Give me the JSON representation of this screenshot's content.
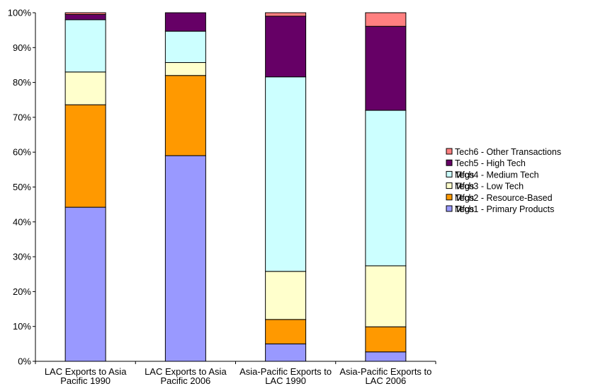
{
  "chart_data": {
    "type": "bar",
    "stacked": true,
    "percent": true,
    "categories": [
      [
        "LAC Exports to Asia",
        "Pacific 1990"
      ],
      [
        "LAC Exports to Asia",
        "Pacific 2006"
      ],
      [
        "Asia-Pacific Exports to",
        "LAC 1990"
      ],
      [
        "Asia-Pacific Exports to",
        "LAC 2006"
      ]
    ],
    "ylim": [
      0,
      100
    ],
    "yticks": [
      0,
      10,
      20,
      30,
      40,
      50,
      60,
      70,
      80,
      90,
      100
    ],
    "ytick_labels": [
      "0%",
      "10%",
      "20%",
      "30%",
      "40%",
      "50%",
      "60%",
      "70%",
      "80%",
      "90%",
      "100%"
    ],
    "grid": false,
    "legend_position": "right",
    "series": [
      {
        "name": "Tech1 - Primary Products",
        "color": "#9999ff",
        "values": [
          44.2,
          59.0,
          5.0,
          2.7
        ]
      },
      {
        "name": "Tech2 - Resource-Based Mfgs",
        "color": "#ff9900",
        "values": [
          29.4,
          23.0,
          7.0,
          7.2
        ]
      },
      {
        "name": "Tech3 - Low Tech Mfgs",
        "color": "#ffffcc",
        "values": [
          9.4,
          3.7,
          13.8,
          17.5
        ]
      },
      {
        "name": "Tech4 - Medium Tech Mfgs",
        "color": "#ccffff",
        "values": [
          15.0,
          9.0,
          55.8,
          44.6
        ]
      },
      {
        "name": "Tech5 - High Tech",
        "color": "#660066",
        "values": [
          1.5,
          5.3,
          17.4,
          24.1
        ]
      },
      {
        "name": "Tech6 - Other Transactions",
        "color": "#ff8080",
        "values": [
          0.5,
          0.0,
          1.0,
          3.9
        ]
      }
    ],
    "legend_lines": [
      [
        "Tech6 - Other Transactions"
      ],
      [
        "Tech5 - High Tech"
      ],
      [
        "Tech4 - Medium Tech",
        "Mfgs"
      ],
      [
        "Tech3 - Low Tech",
        "Mfgs"
      ],
      [
        "Tech2 - Resource-Based",
        "Mfgs"
      ],
      [
        "Tech1 - Primary Products",
        "Mfgs"
      ]
    ]
  }
}
